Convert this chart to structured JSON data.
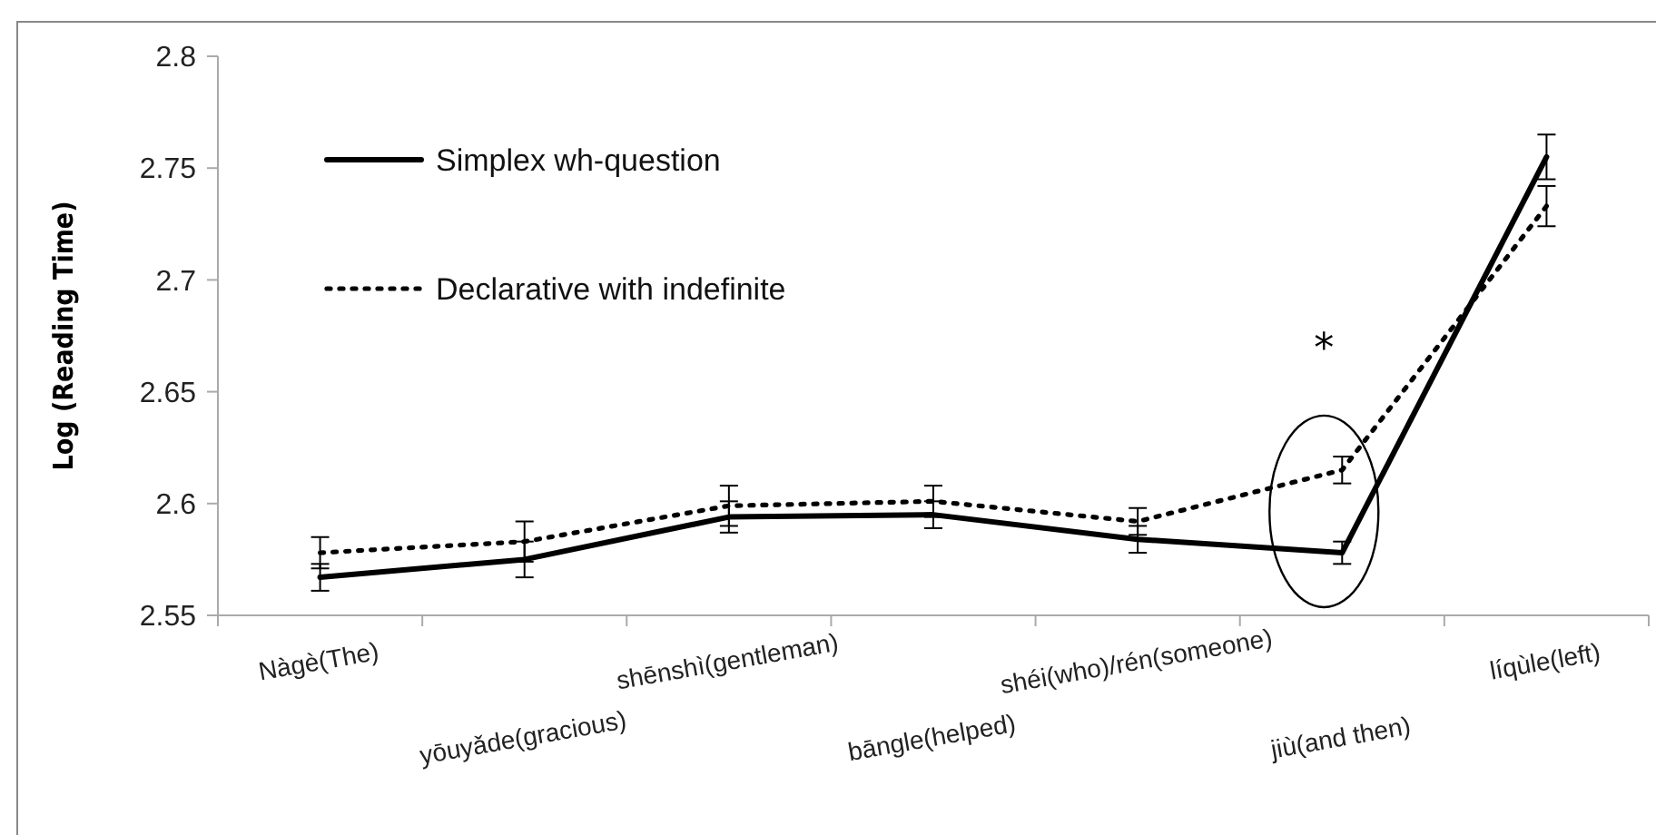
{
  "chart_data": {
    "type": "line",
    "ylabel": "Log (Reading Time)",
    "categories": [
      "Nàgè(The)",
      "yōuyǎde(gracious)",
      "shēnshì(gentleman)",
      "bāngle(helped)",
      "shéi(who)/rén(someone)",
      "jiù(and then)",
      "líqùle(left)"
    ],
    "series": [
      {
        "name": "Simplex wh-question",
        "color": "#000000",
        "line_style": "solid",
        "values": [
          2.567,
          2.575,
          2.594,
          2.595,
          2.584,
          2.578,
          2.755
        ],
        "errors": [
          0.006,
          0.008,
          0.007,
          0.006,
          0.006,
          0.005,
          0.01
        ]
      },
      {
        "name": "Declarative with indefinite",
        "color": "#000000",
        "line_style": "dotted",
        "values": [
          2.578,
          2.583,
          2.599,
          2.601,
          2.592,
          2.615,
          2.733
        ],
        "errors": [
          0.007,
          0.009,
          0.009,
          0.007,
          0.006,
          0.006,
          0.009
        ]
      }
    ],
    "ylim": [
      2.55,
      2.8
    ],
    "yticks": [
      2.55,
      2.6,
      2.65,
      2.7,
      2.75,
      2.8
    ],
    "annotations": [
      "*"
    ],
    "legend": "top left",
    "grid": false
  }
}
